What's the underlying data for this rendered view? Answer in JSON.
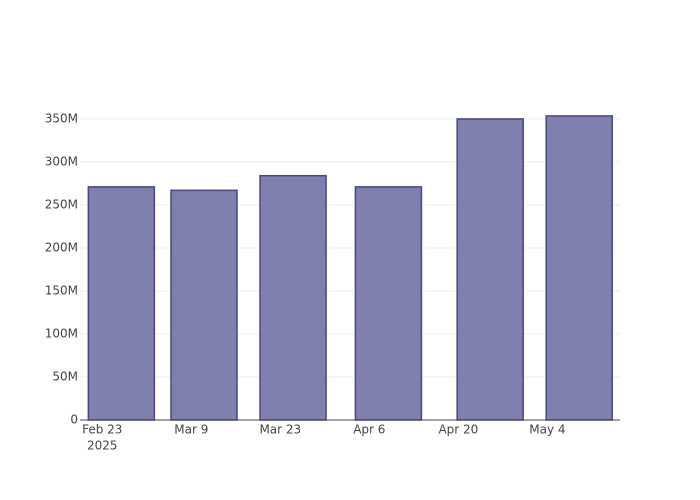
{
  "chart_data": {
    "type": "bar",
    "x": [
      "2025-02-26",
      "2025-03-11",
      "2025-03-25",
      "2025-04-09",
      "2025-04-25",
      "2025-05-09"
    ],
    "values": [
      271000000,
      267000000,
      284000000,
      271000000,
      350000000,
      353500000
    ],
    "color": "#7f7fb0",
    "edge_color": "#47477f",
    "xlim": [
      "2025-02-19T12:00:00Z",
      "2025-05-15T10:00:00Z"
    ],
    "xticks": [
      {
        "value": "2025-02-23",
        "label": "Feb 23"
      },
      {
        "value": "2025-03-09",
        "label": "Mar 9"
      },
      {
        "value": "2025-03-23",
        "label": "Mar 23"
      },
      {
        "value": "2025-04-06",
        "label": "Apr 6"
      },
      {
        "value": "2025-04-20",
        "label": "Apr 20"
      },
      {
        "value": "2025-05-04",
        "label": "May 4"
      }
    ],
    "xtick_year": "2025",
    "ylim": [
      0,
      372000000
    ],
    "yticks": [
      0,
      {
        "value": 50000000,
        "label": "50M"
      },
      {
        "value": 100000000,
        "label": "100M"
      },
      {
        "value": 150000000,
        "label": "150M"
      },
      {
        "value": 200000000,
        "label": "200M"
      },
      {
        "value": 250000000,
        "label": "250M"
      },
      {
        "value": 300000000,
        "label": "300M"
      },
      {
        "value": 350000000,
        "label": "350M"
      }
    ],
    "grid": true
  }
}
